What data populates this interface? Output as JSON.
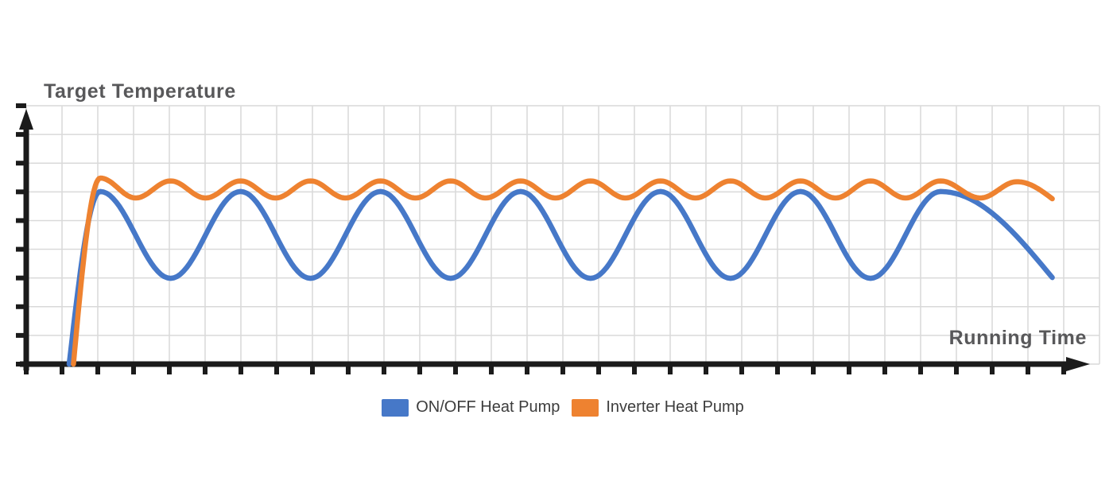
{
  "chart_data": {
    "type": "line",
    "title": "Target Temperature",
    "x_axis_label": "Running Time",
    "y_axis_label": "Target Temperature",
    "axes": {
      "numeric_tick_labels": false,
      "x_tick_count": 30,
      "y_tick_count": 10,
      "grid": true,
      "arrowheads": true
    },
    "legend_position": "bottom-center",
    "units_note": "axes are unlabeled; points given as percent of visible axis range, x 0-100 left-right, y 0-100 bottom-top",
    "series": [
      {
        "name": "ON/OFF Heat Pump",
        "color": "#4678C8",
        "points": [
          [
            4.0,
            0
          ],
          [
            6.9,
            66.8
          ],
          [
            13.45,
            33.2
          ],
          [
            19.97,
            66.8
          ],
          [
            26.49,
            33.2
          ],
          [
            33.01,
            66.8
          ],
          [
            39.54,
            33.2
          ],
          [
            46.06,
            66.8
          ],
          [
            52.58,
            33.2
          ],
          [
            59.1,
            66.8
          ],
          [
            65.62,
            33.2
          ],
          [
            72.14,
            66.8
          ],
          [
            78.67,
            33.2
          ],
          [
            85.19,
            66.8
          ],
          [
            95.6,
            33.5
          ]
        ]
      },
      {
        "name": "Inverter Heat Pump",
        "color": "#EE8230",
        "points": [
          [
            4.4,
            0
          ],
          [
            6.9,
            72.0
          ],
          [
            10.19,
            64.3
          ],
          [
            13.45,
            70.9
          ],
          [
            16.71,
            64.3
          ],
          [
            19.97,
            70.9
          ],
          [
            23.23,
            64.3
          ],
          [
            26.49,
            70.9
          ],
          [
            29.75,
            64.3
          ],
          [
            33.01,
            70.9
          ],
          [
            36.27,
            64.3
          ],
          [
            39.54,
            70.9
          ],
          [
            42.8,
            64.3
          ],
          [
            46.06,
            70.9
          ],
          [
            49.32,
            64.3
          ],
          [
            52.58,
            70.9
          ],
          [
            55.84,
            64.3
          ],
          [
            59.1,
            70.9
          ],
          [
            62.36,
            64.3
          ],
          [
            65.62,
            70.9
          ],
          [
            68.88,
            64.3
          ],
          [
            72.14,
            70.9
          ],
          [
            75.41,
            64.3
          ],
          [
            78.67,
            70.9
          ],
          [
            81.93,
            64.3
          ],
          [
            85.19,
            70.9
          ],
          [
            88.9,
            64.3
          ],
          [
            92.3,
            70.6
          ],
          [
            95.6,
            64.0
          ]
        ]
      }
    ],
    "style": {
      "axis_color": "#1b1b1b",
      "grid_color": "#d9d9d9",
      "title_color": "#58585a",
      "legend_text_color": "#3d3d3d",
      "background": "#ffffff"
    }
  }
}
